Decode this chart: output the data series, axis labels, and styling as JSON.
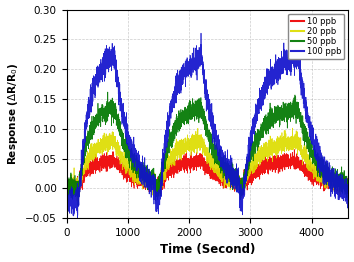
{
  "xlabel": "Time (Second)",
  "ylabel": "Response ($\\Delta$R/R$_0$)",
  "xlim": [
    0,
    4600
  ],
  "ylim": [
    -0.05,
    0.3
  ],
  "xticks": [
    0,
    1000,
    2000,
    3000,
    4000
  ],
  "yticks": [
    -0.05,
    0.0,
    0.05,
    0.1,
    0.15,
    0.2,
    0.25,
    0.3
  ],
  "legend_labels": [
    "10 ppb",
    "20 ppb",
    "50 ppb",
    "100 ppb"
  ],
  "colors": [
    "#EE0000",
    "#DDDD00",
    "#007700",
    "#1111CC"
  ],
  "peak_values": [
    0.042,
    0.078,
    0.135,
    0.24
  ],
  "noise_levels": [
    0.006,
    0.007,
    0.008,
    0.01
  ],
  "cycle_rise_starts": [
    200,
    1520,
    2870
  ],
  "cycle_peaks": [
    780,
    2200,
    3780
  ],
  "cycle_ends": [
    1450,
    2820,
    4580
  ],
  "rise_tau": 80,
  "fall_tau": 280,
  "total_time": 4600,
  "dt": 1,
  "background_color": "#FFFFFF",
  "grid_color": "#AAAAAA",
  "grid_linestyle": "--",
  "grid_alpha": 0.6,
  "linewidth": 0.5
}
